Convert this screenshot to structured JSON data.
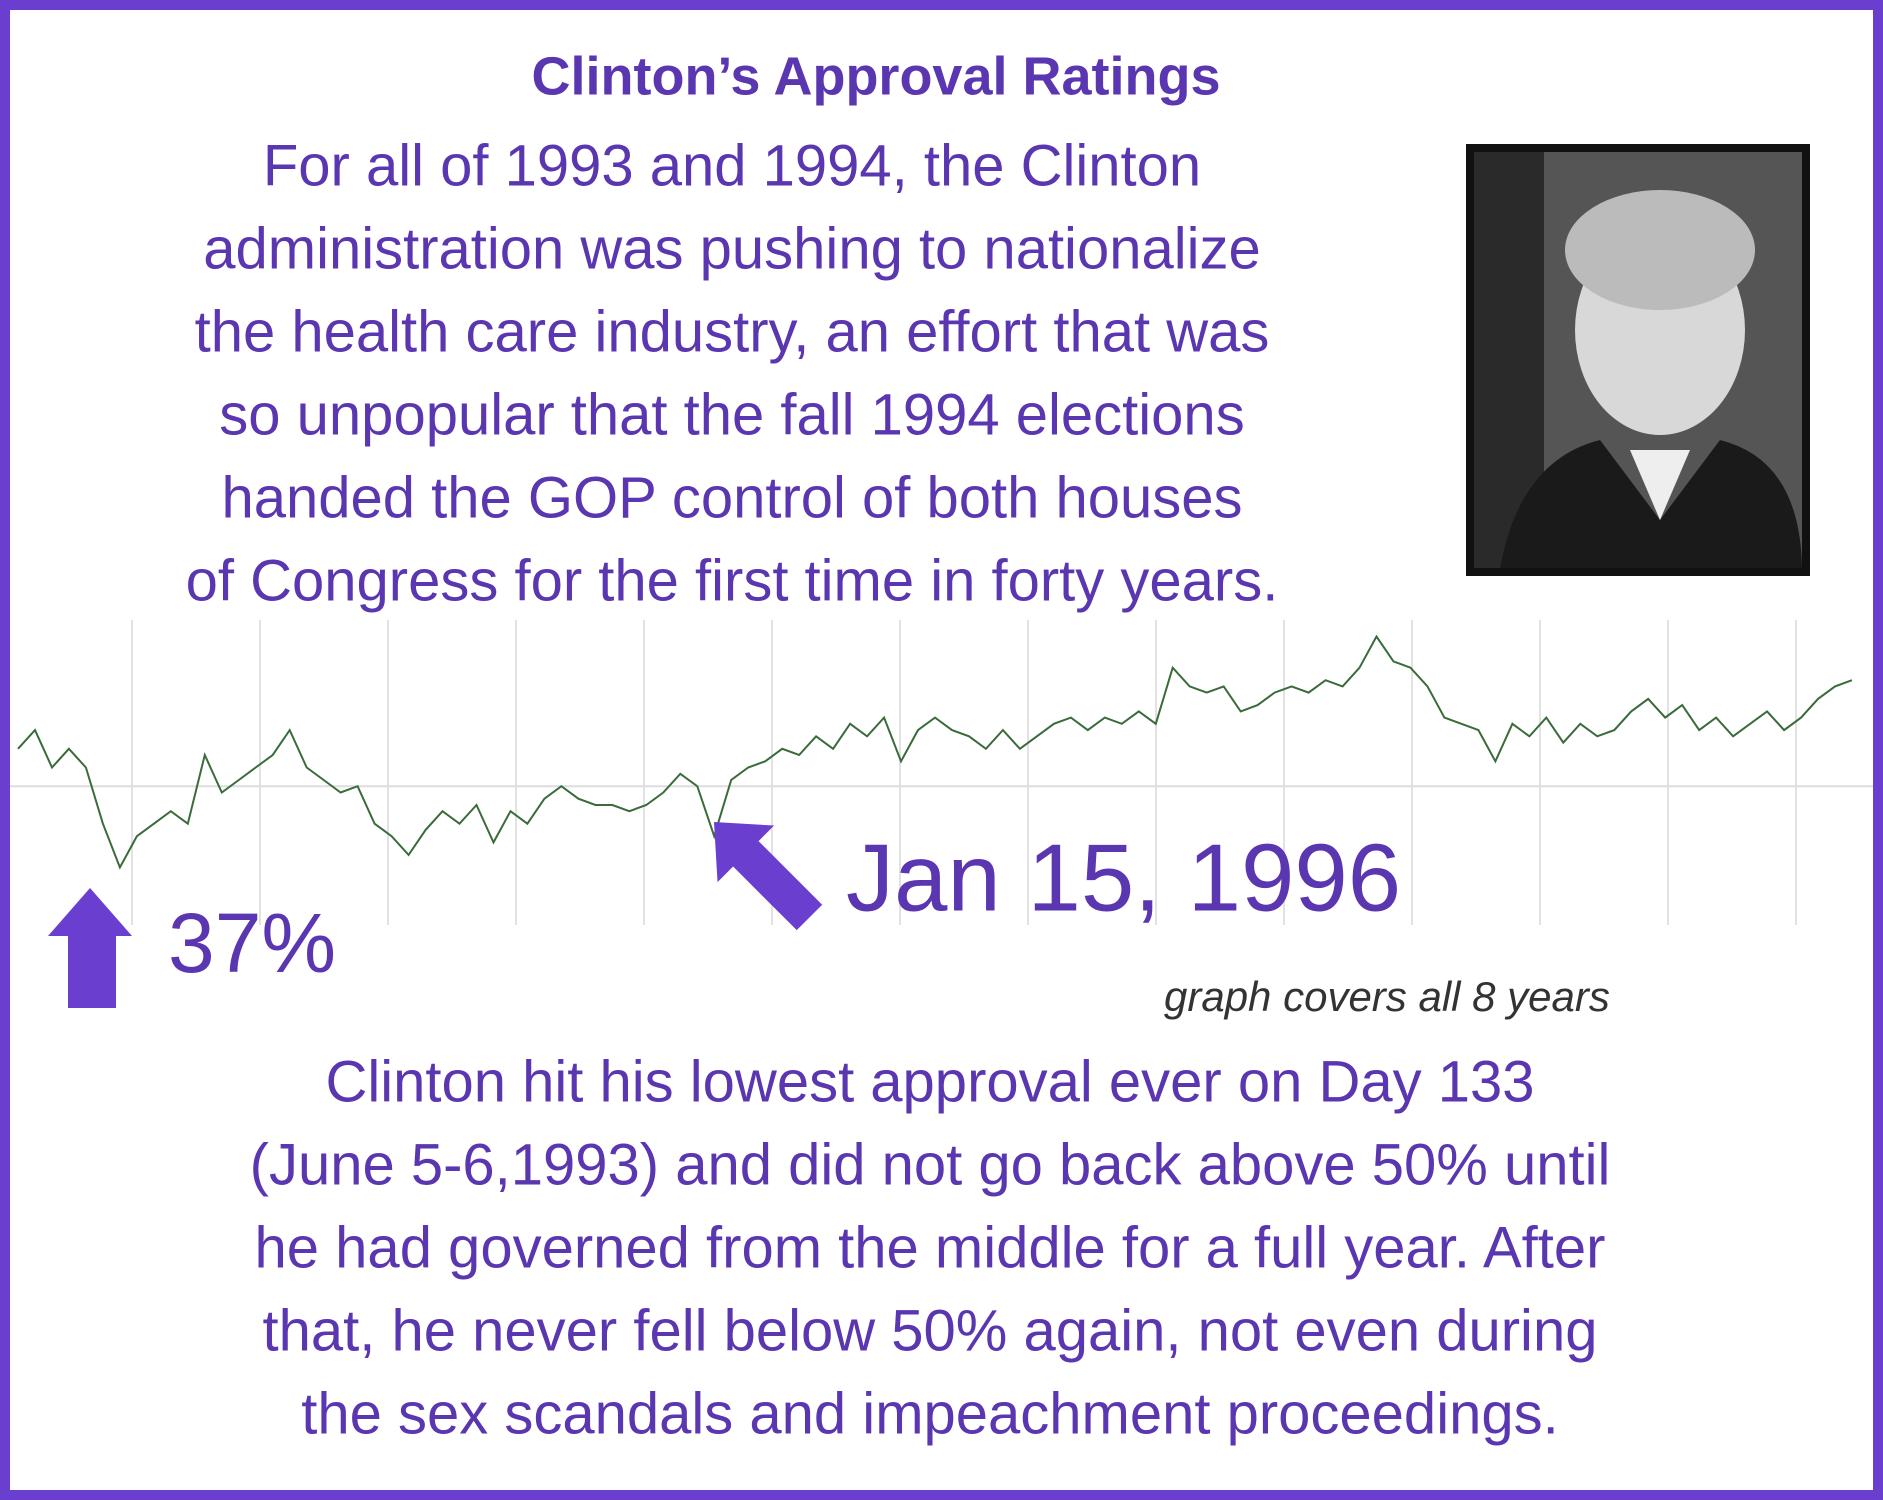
{
  "chart_data": {
    "type": "line",
    "title": "Clinton’s Approval Ratings",
    "intro_lines": [
      "For all of 1993 and 1994, the Clinton",
      "administration was pushing to nationalize",
      "the health care industry, an effort that was",
      "so unpopular that the fall 1994 elections",
      "handed the GOP control of both houses",
      "of Congress for the first time in forty years."
    ],
    "annotations": [
      "37%",
      "Jan 15, 1996",
      "graph covers all 8 years"
    ],
    "summary_lines": [
      "Clinton hit his lowest approval ever on Day 133",
      "(June 5-6,1993) and did not go back above 50% until",
      "he had governed from the middle for a full year. After",
      "that, he never fell below 50% again, not even during",
      "the sex scandals and impeachment proceedings."
    ],
    "color": "#3a6b3a",
    "ylim": [
      26,
      76
    ],
    "reference_line": 50,
    "values": [
      56,
      59,
      53,
      56,
      53,
      44,
      37,
      42,
      44,
      46,
      44,
      55,
      49,
      51,
      53,
      55,
      59,
      53,
      51,
      49,
      50,
      44,
      42,
      39,
      43,
      46,
      44,
      47,
      41,
      46,
      44,
      48,
      50,
      48,
      47,
      47,
      46,
      47,
      49,
      52,
      50,
      42,
      51,
      53,
      54,
      56,
      55,
      58,
      56,
      60,
      58,
      61,
      54,
      59,
      61,
      59,
      58,
      56,
      59,
      56,
      58,
      60,
      61,
      59,
      61,
      60,
      62,
      60,
      69,
      66,
      65,
      66,
      62,
      63,
      65,
      66,
      65,
      67,
      66,
      69,
      74,
      70,
      69,
      66,
      61,
      60,
      59,
      54,
      60,
      58,
      61,
      57,
      60,
      58,
      59,
      62,
      64,
      61,
      63,
      59,
      61,
      58,
      60,
      62,
      59,
      61,
      64,
      66,
      67
    ]
  }
}
